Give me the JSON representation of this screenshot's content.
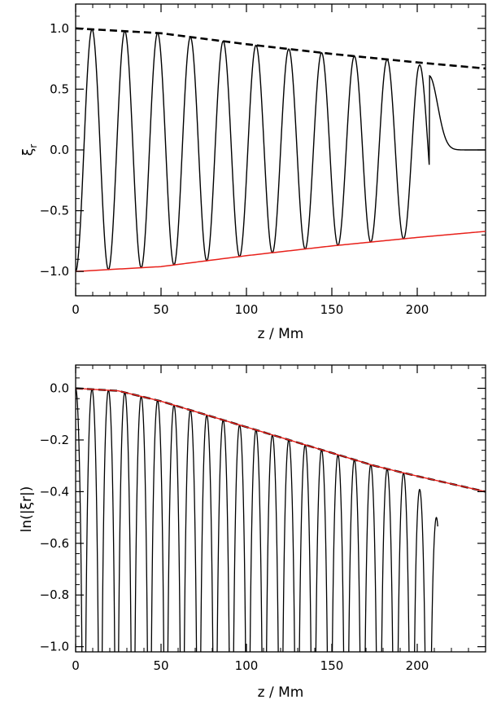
{
  "chart_data": [
    {
      "type": "line",
      "xlabel": "z / Mm",
      "ylabel_main": "ξ",
      "ylabel_sub": "r",
      "xlim": [
        0,
        240
      ],
      "ylim": [
        -1.2,
        1.2
      ],
      "xticks": [
        0,
        50,
        100,
        150,
        200
      ],
      "xtick_labels": [
        "0",
        "50",
        "100",
        "150",
        "200"
      ],
      "yticks": [
        -1.0,
        -0.5,
        0.0,
        0.5,
        1.0
      ],
      "ytick_labels": [
        "−1.0",
        "−0.5",
        "0.0",
        "0.5",
        "1.0"
      ],
      "grid": false,
      "series": [
        {
          "name": "oscillation",
          "style": "solid",
          "color": "#000000",
          "description": "damped cosine, wavelength ~19.2 Mm, amplitude tracks envelope, cut-off near z=205 Mm then decays to 0",
          "envelope_x": [
            0,
            50,
            100,
            150,
            200,
            240
          ],
          "envelope_y": [
            1.0,
            0.96,
            0.87,
            0.79,
            0.72,
            0.67
          ],
          "wavelength": 19.2,
          "last_peak": [
            207,
            0.61
          ],
          "tail_value": 0.0
        },
        {
          "name": "upper envelope",
          "style": "dashed",
          "color": "#000000",
          "x": [
            0,
            50,
            100,
            150,
            200,
            240
          ],
          "y": [
            1.0,
            0.96,
            0.87,
            0.79,
            0.72,
            0.67
          ]
        },
        {
          "name": "lower envelope",
          "style": "solid",
          "color": "#e8201a",
          "x": [
            0,
            50,
            100,
            150,
            200,
            240
          ],
          "y": [
            -1.0,
            -0.96,
            -0.87,
            -0.79,
            -0.72,
            -0.67
          ]
        }
      ]
    },
    {
      "type": "line",
      "xlabel": "z / Mm",
      "ylabel": "ln(|ξr|)",
      "xlim": [
        0,
        240
      ],
      "ylim": [
        -1.02,
        0.09
      ],
      "xticks": [
        0,
        50,
        100,
        150,
        200
      ],
      "xtick_labels": [
        "0",
        "50",
        "100",
        "150",
        "200"
      ],
      "yticks": [
        -1.0,
        -0.8,
        -0.6,
        -0.4,
        -0.2,
        0.0
      ],
      "ytick_labels": [
        "−1.0",
        "−0.8",
        "−0.6",
        "−0.4",
        "−0.2",
        "0.0"
      ],
      "grid": false,
      "series": [
        {
          "name": "ln|xi| oscillation",
          "style": "solid",
          "color": "#000000",
          "description": "ln|cos| peaks touching envelope every ~9.6 Mm, diving below -1.0 between peaks; last peak ~-0.5 near z=207",
          "half_wavelength": 9.6,
          "last_peak": [
            207,
            -0.5
          ]
        },
        {
          "name": "envelope (dashed)",
          "style": "dashed",
          "color": "#000000",
          "x": [
            0,
            25,
            50,
            75,
            100,
            125,
            150,
            175,
            200,
            240
          ],
          "y": [
            0.0,
            -0.01,
            -0.05,
            -0.1,
            -0.15,
            -0.2,
            -0.25,
            -0.3,
            -0.34,
            -0.4
          ]
        },
        {
          "name": "envelope (red)",
          "style": "solid",
          "color": "#e8201a",
          "x": [
            0,
            25,
            50,
            75,
            100,
            125,
            150,
            175,
            200,
            240
          ],
          "y": [
            0.0,
            -0.01,
            -0.05,
            -0.1,
            -0.15,
            -0.2,
            -0.25,
            -0.3,
            -0.34,
            -0.4
          ]
        }
      ]
    }
  ]
}
